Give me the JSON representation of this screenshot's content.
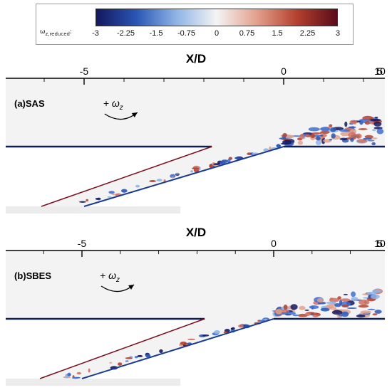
{
  "colorbar": {
    "label_main": "ω",
    "label_sub": "z,reduced",
    "label_suffix": ":",
    "ticks": [
      "-3",
      "-2.25",
      "-1.5",
      "-0.75",
      "0",
      "0.75",
      "1.5",
      "2.25",
      "3"
    ],
    "colors": [
      "#15175e",
      "#2a56b5",
      "#8fb4e6",
      "#f4f4f4",
      "#e2a08c",
      "#b4402f",
      "#5a0b1a"
    ]
  },
  "panels": [
    {
      "axis_title": "X/D",
      "axis_ticks": [
        "-5",
        "0",
        "5",
        "10"
      ],
      "case_label": "(a)SAS",
      "rotation_label": "+ ω",
      "rotation_sub": "z"
    },
    {
      "axis_title": "X/D",
      "axis_ticks": [
        "-5",
        "0",
        "5",
        "10"
      ],
      "case_label": "(b)SBES",
      "rotation_label": "+ ω",
      "rotation_sub": "z"
    }
  ],
  "theme": {
    "wall": "#0e1f55",
    "field": "#f3f3f3",
    "ramp": "#f5f5f5"
  }
}
